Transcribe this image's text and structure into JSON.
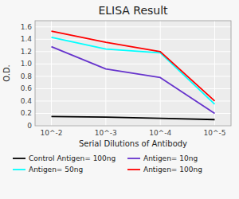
{
  "chart_data": {
    "type": "line",
    "title": "ELISA Result",
    "x_label": "Serial Dilutions  of Antibody",
    "y_label": "O.D.",
    "x": [
      2,
      3,
      4,
      5
    ],
    "xlim": [
      1.7,
      5.3
    ],
    "xticks": [
      {
        "value": 2,
        "label": "10^-2"
      },
      {
        "value": 3,
        "label": "10^-3"
      },
      {
        "value": 4,
        "label": "10^-4"
      },
      {
        "value": 5,
        "label": "10^-5"
      }
    ],
    "ylim": [
      0,
      1.7
    ],
    "yticks": [
      0,
      0.2,
      0.4,
      0.6,
      0.8,
      {
        "value": 1.0,
        "label": "1.0"
      },
      1.2,
      1.4,
      1.6
    ],
    "grid": true,
    "legend": "bottom",
    "series": [
      {
        "name": "Control Antigen= 100ng",
        "color": "black",
        "values": [
          0.15,
          0.14,
          0.12,
          0.1
        ]
      },
      {
        "name": "Antigen= 10ng",
        "color": "#6633cc",
        "values": [
          1.28,
          0.92,
          0.78,
          0.2
        ]
      },
      {
        "name": "Antigen= 50ng",
        "color": "cyan",
        "values": [
          1.43,
          1.24,
          1.18,
          0.35
        ]
      },
      {
        "name": "Antigen= 100ng",
        "color": "red",
        "values": [
          1.53,
          1.35,
          1.2,
          0.4
        ]
      }
    ]
  }
}
